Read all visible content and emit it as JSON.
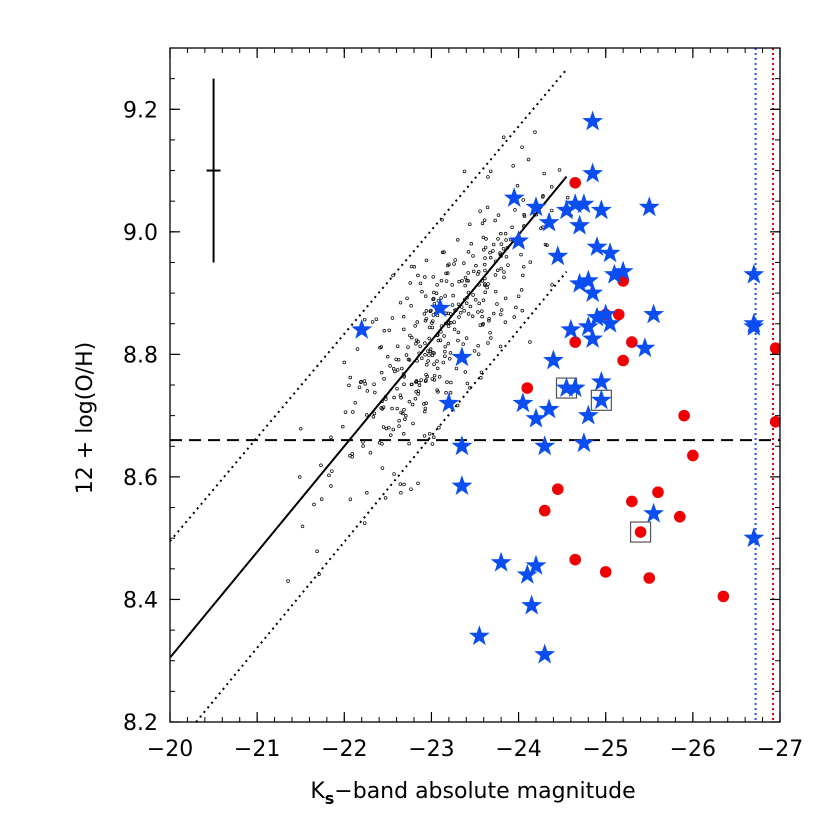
{
  "chart_data": {
    "type": "scatter",
    "xlabel_main": "K",
    "xlabel_sub": "s",
    "xlabel_rest": "−band absolute magnitude",
    "ylabel": "12 + log(O/H)",
    "xlim": [
      -20,
      -27
    ],
    "ylim": [
      8.2,
      9.3
    ],
    "xticks": [
      {
        "value": -20,
        "label": "−20"
      },
      {
        "value": -21,
        "label": "−21"
      },
      {
        "value": -22,
        "label": "−22"
      },
      {
        "value": -23,
        "label": "−23"
      },
      {
        "value": -24,
        "label": "−24"
      },
      {
        "value": -25,
        "label": "−25"
      },
      {
        "value": -26,
        "label": "−26"
      },
      {
        "value": -27,
        "label": "−27"
      }
    ],
    "yticks": [
      {
        "value": 8.2,
        "label": "8.2"
      },
      {
        "value": 8.4,
        "label": "8.4"
      },
      {
        "value": 8.6,
        "label": "8.6"
      },
      {
        "value": 8.8,
        "label": "8.8"
      },
      {
        "value": 9.0,
        "label": "9.0"
      },
      {
        "value": 9.2,
        "label": "9.2"
      }
    ],
    "colors": {
      "star": "#0a4ef2",
      "circle": "#f00000",
      "blue_line": "#1f4fff",
      "red_line": "#e00000"
    },
    "stars": [
      [
        -22.2,
        8.84
      ],
      [
        -23.1,
        8.875
      ],
      [
        -23.35,
        8.795
      ],
      [
        -23.2,
        8.72
      ],
      [
        -23.35,
        8.65
      ],
      [
        -23.35,
        8.585
      ],
      [
        -23.8,
        8.46
      ],
      [
        -24.1,
        8.44
      ],
      [
        -24.2,
        8.455
      ],
      [
        -24.15,
        8.39
      ],
      [
        -23.55,
        8.34
      ],
      [
        -24.3,
        8.31
      ],
      [
        -23.95,
        9.055
      ],
      [
        -24.0,
        8.985
      ],
      [
        -24.2,
        9.04
      ],
      [
        -24.35,
        9.015
      ],
      [
        -24.45,
        8.96
      ],
      [
        -24.55,
        9.035
      ],
      [
        -24.65,
        9.045
      ],
      [
        -24.75,
        9.045
      ],
      [
        -24.85,
        9.095
      ],
      [
        -24.85,
        9.18
      ],
      [
        -24.7,
        9.01
      ],
      [
        -24.95,
        9.035
      ],
      [
        -24.9,
        8.975
      ],
      [
        -25.05,
        8.965
      ],
      [
        -25.1,
        8.93
      ],
      [
        -25.2,
        8.935
      ],
      [
        -24.7,
        8.915
      ],
      [
        -24.8,
        8.92
      ],
      [
        -24.85,
        8.9
      ],
      [
        -24.9,
        8.86
      ],
      [
        -25.0,
        8.865
      ],
      [
        -25.05,
        8.85
      ],
      [
        -24.6,
        8.84
      ],
      [
        -24.8,
        8.845
      ],
      [
        -24.85,
        8.825
      ],
      [
        -25.5,
        9.04
      ],
      [
        -25.55,
        8.865
      ],
      [
        -25.45,
        8.81
      ],
      [
        -24.4,
        8.79
      ],
      [
        -24.05,
        8.72
      ],
      [
        -24.2,
        8.695
      ],
      [
        -24.35,
        8.71
      ],
      [
        -24.3,
        8.65
      ],
      [
        -24.55,
        8.745
      ],
      [
        -24.65,
        8.745
      ],
      [
        -24.95,
        8.755
      ],
      [
        -24.95,
        8.725
      ],
      [
        -24.8,
        8.7
      ],
      [
        -24.75,
        8.655
      ],
      [
        -25.55,
        8.54
      ],
      [
        -26.7,
        8.93
      ],
      [
        -26.7,
        8.85
      ],
      [
        -26.7,
        8.845
      ],
      [
        -26.7,
        8.5
      ]
    ],
    "circles": [
      [
        -24.65,
        9.08
      ],
      [
        -25.2,
        8.92
      ],
      [
        -25.0,
        8.865
      ],
      [
        -25.15,
        8.865
      ],
      [
        -24.65,
        8.82
      ],
      [
        -25.3,
        8.82
      ],
      [
        -25.2,
        8.79
      ],
      [
        -24.1,
        8.745
      ],
      [
        -25.9,
        8.7
      ],
      [
        -26.0,
        8.635
      ],
      [
        -24.45,
        8.58
      ],
      [
        -24.3,
        8.545
      ],
      [
        -25.3,
        8.56
      ],
      [
        -25.6,
        8.575
      ],
      [
        -25.85,
        8.535
      ],
      [
        -25.4,
        8.51
      ],
      [
        -24.65,
        8.465
      ],
      [
        -25.0,
        8.445
      ],
      [
        -25.5,
        8.435
      ],
      [
        -26.35,
        8.405
      ],
      [
        -26.95,
        8.81
      ],
      [
        -26.95,
        8.69
      ]
    ],
    "boxed": [
      [
        -24.55,
        8.745
      ],
      [
        -24.95,
        8.725
      ],
      [
        -25.4,
        8.51
      ]
    ],
    "fit_line": [
      [
        -20.0,
        8.305
      ],
      [
        -24.55,
        9.09
      ]
    ],
    "dotted_upper": [
      [
        -20.0,
        8.495
      ],
      [
        -24.55,
        9.265
      ]
    ],
    "dotted_lower": [
      [
        -20.3,
        8.2
      ],
      [
        -24.55,
        8.935
      ]
    ],
    "hline_y": 8.66,
    "vline_blue_x": -26.72,
    "vline_red_x": -26.92,
    "errorbar": {
      "x": -20.5,
      "y": 9.1,
      "yerr": 0.15,
      "xerr": 0.08
    },
    "small_points_seed": 7,
    "small_points_count": 400
  }
}
